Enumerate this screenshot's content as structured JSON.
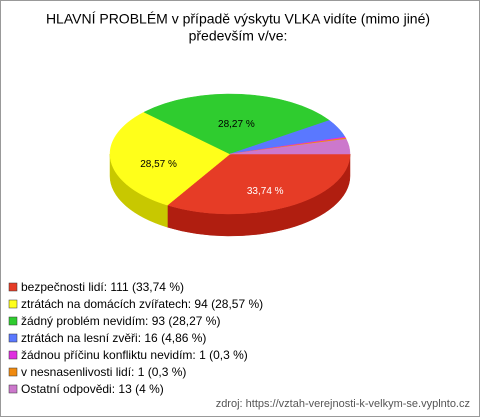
{
  "chart_data": {
    "type": "pie",
    "title_lines": [
      "HLAVNÍ PROBLÉM v případě výskytu VLKA vidíte (mimo jiné)",
      "především v/ve:"
    ],
    "categories": [
      "bezpečnosti lidí",
      "ztrátách na domácích zvířatech",
      "žádný problém nevidím",
      "ztrátách na lesní zvěři",
      "žádnou příčinu konfliktu nevidím",
      "v nesnasenlivosti lidí",
      "Ostatní odpovědi"
    ],
    "legend_labels": [
      "bezpečnosti lidí: 111 (33,74 %)",
      "ztrátách na domácích zvířatech: 94 (28,57 %)",
      "žádný problém nevidím: 93 (28,27 %)",
      "ztrátách na lesní zvěři: 16 (4,86 %)",
      "žádnou příčinu konfliktu nevidím: 1 (0,3 %)",
      "v nesnasenlivosti lidí: 1 (0,3 %)",
      "Ostatní odpovědi: 13 (4 %)"
    ],
    "values": [
      33.74,
      28.57,
      28.27,
      4.86,
      0.3,
      0.3,
      4
    ],
    "value_labels": [
      "33,74 %",
      "28,57 %",
      "28,27 %",
      null,
      null,
      null,
      null
    ],
    "colors": [
      "#e63c26",
      "#ffff1a",
      "#2fcc2f",
      "#5a78ff",
      "#e030e0",
      "#f08a10",
      "#cc78cc"
    ],
    "side_colors": [
      "#b01e10",
      "#c8c800",
      "#1e9a1e",
      "#3a50c0",
      "#a01aa0",
      "#b06000",
      "#9a509a"
    ],
    "source": "zdroj: https://vztah-verejnosti-k-velkym-se.vyplnto.cz"
  }
}
